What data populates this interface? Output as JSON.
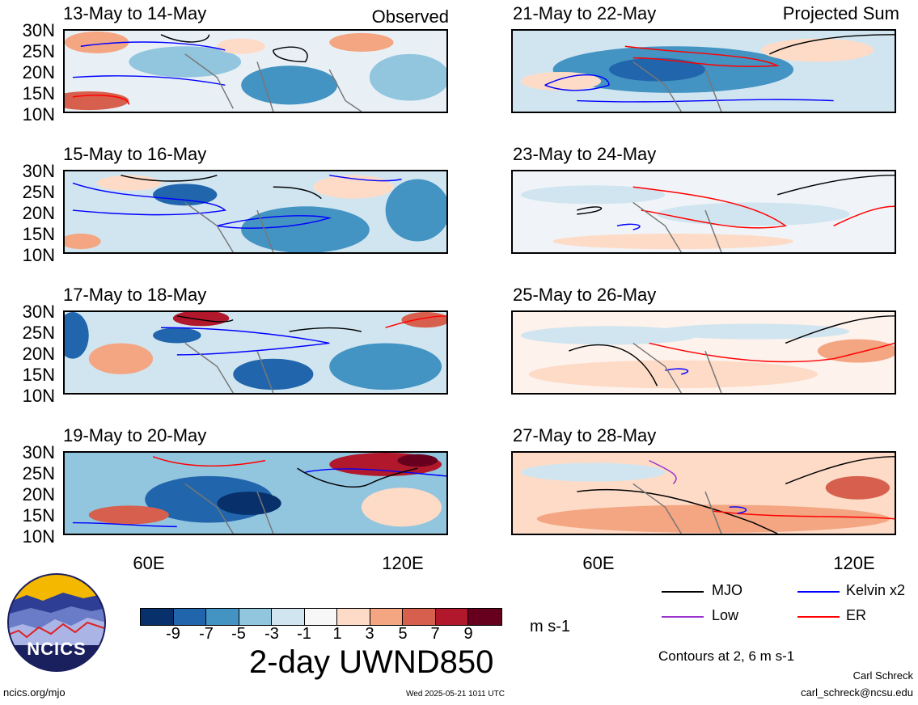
{
  "panels_left": [
    {
      "title": "13-May to 14-May",
      "tag": "Observed"
    },
    {
      "title": "15-May to 16-May",
      "tag": ""
    },
    {
      "title": "17-May to 18-May",
      "tag": ""
    },
    {
      "title": "19-May to 20-May",
      "tag": ""
    }
  ],
  "panels_right": [
    {
      "title": "21-May to 22-May",
      "tag": "Projected Sum"
    },
    {
      "title": "23-May to 24-May",
      "tag": ""
    },
    {
      "title": "25-May to 26-May",
      "tag": ""
    },
    {
      "title": "27-May to 28-May",
      "tag": ""
    }
  ],
  "lat_labels": [
    "30N",
    "25N",
    "20N",
    "15N",
    "10N"
  ],
  "lon_labels": [
    "60E",
    "120E"
  ],
  "colorbar": {
    "colors": [
      "#08306b",
      "#2166ac",
      "#4393c3",
      "#92c5de",
      "#d1e5f0",
      "#f7f7f7",
      "#fddbc7",
      "#f4a582",
      "#d6604d",
      "#b2182b",
      "#67001f"
    ],
    "ticks": [
      "-9",
      "-7",
      "-5",
      "-3",
      "-1",
      "1",
      "3",
      "5",
      "7",
      "9"
    ],
    "unit": "m s-1",
    "title": "2-day UWND850"
  },
  "legend": {
    "items": [
      {
        "label": "MJO",
        "color": "#000000"
      },
      {
        "label": "Kelvin x2",
        "color": "#0000ff"
      },
      {
        "label": "Low",
        "color": "#9933cc"
      },
      {
        "label": "ER",
        "color": "#ff0000"
      }
    ],
    "contours_note": "Contours at 2, 6 m s-1"
  },
  "logo": {
    "text": "NCICS"
  },
  "footer": {
    "url": "ncics.org/mjo",
    "timestamp": "Wed 2025-05-21 1011 UTC",
    "author": "Carl Schreck",
    "email": "carl_schreck@ncsu.edu"
  }
}
